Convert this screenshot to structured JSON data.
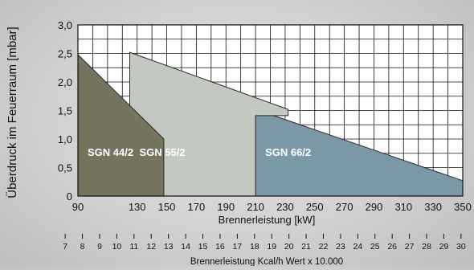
{
  "chart_data": {
    "type": "area",
    "ylabel": "Überdruck im Feuerraum [mbar]",
    "xlabel": "Brennerleistung [kW]",
    "x2label": "Brennerleistung Kcal/h Wert x 10.000",
    "xlim": [
      90,
      350
    ],
    "ylim": [
      0,
      3.0
    ],
    "x_ticks": [
      90,
      130,
      150,
      170,
      190,
      210,
      230,
      250,
      270,
      290,
      310,
      330,
      350
    ],
    "y_ticks": [
      "0",
      "0,5",
      "1,0",
      "1,5",
      "2,0",
      "2,5",
      "3,0"
    ],
    "y_tick_values": [
      0,
      0.5,
      1.0,
      1.5,
      2.0,
      2.5,
      3.0
    ],
    "x_grid_step": 10,
    "y_grid_step": 0.25,
    "grid": true,
    "x2_ticks": [
      7,
      8,
      9,
      10,
      11,
      12,
      13,
      14,
      15,
      16,
      17,
      18,
      19,
      20,
      21,
      22,
      23,
      24,
      25,
      26,
      27,
      28,
      29,
      30
    ],
    "series": [
      {
        "name": "SGN 66/2",
        "color": "#7a98a6",
        "points": [
          [
            210,
            0
          ],
          [
            210,
            1.52
          ],
          [
            350,
            0.27
          ],
          [
            350,
            0
          ]
        ]
      },
      {
        "name": "SGN 55/2",
        "color": "#c3c8c0",
        "points": [
          [
            125,
            0
          ],
          [
            125,
            2.52
          ],
          [
            232,
            1.52
          ],
          [
            232,
            1.41
          ],
          [
            210,
            1.41
          ],
          [
            210,
            0
          ]
        ]
      },
      {
        "name": "SGN 44/2",
        "color": "#76745f",
        "points": [
          [
            90,
            0
          ],
          [
            90,
            2.48
          ],
          [
            148,
            1.0
          ],
          [
            148,
            0
          ]
        ]
      }
    ]
  }
}
